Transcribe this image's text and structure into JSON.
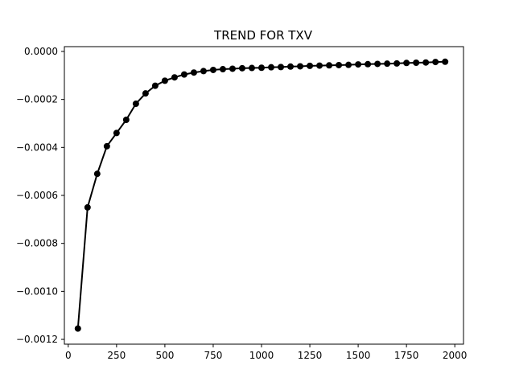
{
  "chart_data": {
    "type": "line",
    "title": "TREND FOR TXV",
    "xlabel": "",
    "ylabel": "",
    "xlim": [
      -20,
      2045
    ],
    "ylim": [
      -0.00122,
      2e-05
    ],
    "xticks": [
      0,
      250,
      500,
      750,
      1000,
      1250,
      1500,
      1750,
      2000
    ],
    "xtick_labels": [
      "0",
      "250",
      "500",
      "750",
      "1000",
      "1250",
      "1500",
      "1750",
      "2000"
    ],
    "yticks": [
      0.0,
      -0.0002,
      -0.0004,
      -0.0006,
      -0.0008,
      -0.001,
      -0.0012
    ],
    "ytick_labels": [
      "0.0000",
      "−0.0002",
      "−0.0004",
      "−0.0006",
      "−0.0008",
      "−0.0010",
      "−0.0012"
    ],
    "grid": false,
    "legend": "none",
    "series": [
      {
        "color": "#000000",
        "marker": "circle",
        "x": [
          50,
          100,
          150,
          200,
          250,
          300,
          350,
          400,
          450,
          500,
          550,
          600,
          650,
          700,
          750,
          800,
          850,
          900,
          950,
          1000,
          1050,
          1100,
          1150,
          1200,
          1250,
          1300,
          1350,
          1400,
          1450,
          1500,
          1550,
          1600,
          1650,
          1700,
          1750,
          1800,
          1850,
          1900,
          1950
        ],
        "y": [
          -0.001155,
          -0.00065,
          -0.00051,
          -0.000395,
          -0.00034,
          -0.000285,
          -0.000218,
          -0.000175,
          -0.000143,
          -0.000122,
          -0.000108,
          -9.6e-05,
          -8.8e-05,
          -8.2e-05,
          -7.7e-05,
          -7.4e-05,
          -7.2e-05,
          -7e-05,
          -6.9e-05,
          -6.8e-05,
          -6.6e-05,
          -6.5e-05,
          -6.3e-05,
          -6.2e-05,
          -6e-05,
          -5.9e-05,
          -5.8e-05,
          -5.7e-05,
          -5.6e-05,
          -5.4e-05,
          -5.3e-05,
          -5.2e-05,
          -5.1e-05,
          -5e-05,
          -4.8e-05,
          -4.7e-05,
          -4.6e-05,
          -4.4e-05,
          -4.3e-05
        ]
      }
    ]
  }
}
